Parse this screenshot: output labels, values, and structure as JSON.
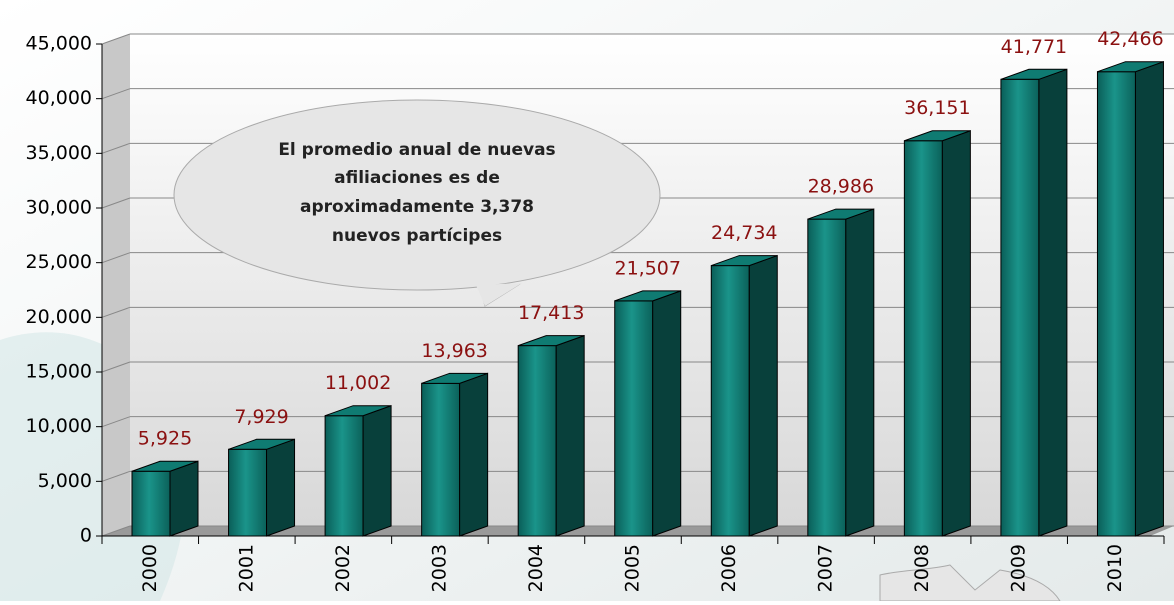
{
  "chart_data": {
    "type": "bar3d",
    "categories": [
      "2000",
      "2001",
      "2002",
      "2003",
      "2004",
      "2005",
      "2006",
      "2007",
      "2008",
      "2009",
      "2010"
    ],
    "values": [
      5925,
      7929,
      11002,
      13963,
      17413,
      21507,
      24734,
      28986,
      36151,
      41771,
      42466
    ],
    "value_labels": [
      "5,925",
      "7,929",
      "11,002",
      "13,963",
      "17,413",
      "21,507",
      "24,734",
      "28,986",
      "36,151",
      "41,771",
      "42,466"
    ],
    "color": "#0f7b72",
    "ylim": [
      0,
      45000
    ],
    "yticks": [
      0,
      {
        "value": 5000,
        "label": "5,000"
      },
      {
        "value": 10000,
        "label": "10,000"
      },
      {
        "value": 15000,
        "label": "15,000"
      },
      {
        "value": 20000,
        "label": "20,000"
      },
      {
        "value": 25000,
        "label": "25,000"
      },
      {
        "value": 30000,
        "label": "30,000"
      },
      {
        "value": 35000,
        "label": "35,000"
      },
      {
        "value": 40000,
        "label": "40,000"
      },
      {
        "value": 45000,
        "label": "45,000"
      }
    ],
    "grid": true,
    "annotation": [
      "El promedio anual de nuevas",
      "afiliaciones es de",
      "aproximadamente 3,378",
      "nuevos partícipes"
    ]
  }
}
